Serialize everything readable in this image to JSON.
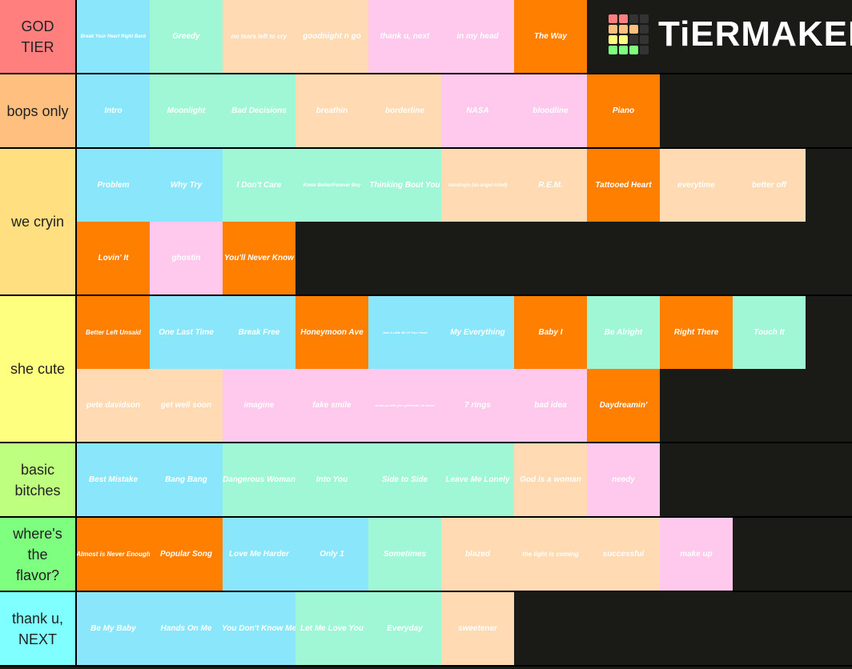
{
  "logo": "TiERMAKER",
  "tiers": [
    {
      "label": "GOD TIER",
      "color": "#ff7f7f",
      "items": [
        "Break Your Heart Right Back",
        "Greedy",
        "no tears left to cry",
        "goodnight n go",
        "thank u, next",
        "in my head",
        "The Way"
      ],
      "colors": [
        "#8ae6fb",
        "#9ff7d6",
        "#ffdab2",
        "#ffdab2",
        "#ffc9ee",
        "#ffc9ee",
        "#ff7f00"
      ]
    },
    {
      "label": "bops only",
      "color": "#ffbf7f",
      "items": [
        "Intro",
        "Moonlight",
        "Bad Decisions",
        "breathin",
        "borderline",
        "NASA",
        "bloodline",
        "Piano"
      ],
      "colors": [
        "#8ae6fb",
        "#9ff7d6",
        "#9ff7d6",
        "#ffdab2",
        "#ffdab2",
        "#ffc9ee",
        "#ffc9ee",
        "#ff7f00"
      ]
    },
    {
      "label": "we cryin",
      "color": "#ffdf7f",
      "items": [
        "Problem",
        "Why Try",
        "I Don't Care",
        "Knew Better/Forever Boy",
        "Thinking Bout You",
        "raindrops (an angel cried)",
        "R.E.M.",
        "Tattooed Heart",
        "everytime",
        "better off",
        "Lovin' It",
        "ghostin",
        "You'll Never Know"
      ],
      "colors": [
        "#8ae6fb",
        "#8ae6fb",
        "#9ff7d6",
        "#9ff7d6",
        "#9ff7d6",
        "#ffdab2",
        "#ffdab2",
        "#ff7f00",
        "#ffdab2",
        "#ffdab2",
        "#ff7f00",
        "#ffc9ee",
        "#ff7f00"
      ]
    },
    {
      "label": "she cute",
      "color": "#ffff7f",
      "items": [
        "Better Left Unsaid",
        "One Last Time",
        "Break Free",
        "Honeymoon Ave",
        "Just A Little Bit Of Your Heart",
        "My Everything",
        "Baby I",
        "Be Alright",
        "Right There",
        "Touch It",
        "pete davidson",
        "get well soon",
        "imagine",
        "fake smile",
        "break up with your girlfriend, i'm bored",
        "7 rings",
        "bad idea",
        "Daydreamin'"
      ],
      "colors": [
        "#ff7f00",
        "#8ae6fb",
        "#8ae6fb",
        "#ff7f00",
        "#8ae6fb",
        "#8ae6fb",
        "#ff7f00",
        "#9ff7d6",
        "#ff7f00",
        "#9ff7d6",
        "#ffdab2",
        "#ffdab2",
        "#ffc9ee",
        "#ffc9ee",
        "#ffc9ee",
        "#ffc9ee",
        "#ffc9ee",
        "#ff7f00"
      ]
    },
    {
      "label": "basic bitches",
      "color": "#bfff7f",
      "items": [
        "Best Mistake",
        "Bang Bang",
        "Dangerous Woman",
        "Into You",
        "Side to Side",
        "Leave Me Lonely",
        "God is a woman",
        "needy"
      ],
      "colors": [
        "#8ae6fb",
        "#8ae6fb",
        "#9ff7d6",
        "#9ff7d6",
        "#9ff7d6",
        "#9ff7d6",
        "#ffdab2",
        "#ffc9ee"
      ]
    },
    {
      "label": "where's the flavor?",
      "color": "#7fff7f",
      "items": [
        "Almost is Never Enough",
        "Popular Song",
        "Love Me Harder",
        "Only 1",
        "Sometimes",
        "blazed",
        "the light is coming",
        "successful",
        "make up"
      ],
      "colors": [
        "#ff7f00",
        "#ff7f00",
        "#8ae6fb",
        "#8ae6fb",
        "#9ff7d6",
        "#ffdab2",
        "#ffdab2",
        "#ffdab2",
        "#ffc9ee"
      ]
    },
    {
      "label": "thank u, NEXT",
      "color": "#7fffff",
      "items": [
        "Be My Baby",
        "Hands On Me",
        "You Don't Know Me",
        "Let Me Love You",
        "Everyday",
        "sweetener"
      ],
      "colors": [
        "#8ae6fb",
        "#8ae6fb",
        "#8ae6fb",
        "#9ff7d6",
        "#9ff7d6",
        "#ffdab2"
      ]
    }
  ]
}
